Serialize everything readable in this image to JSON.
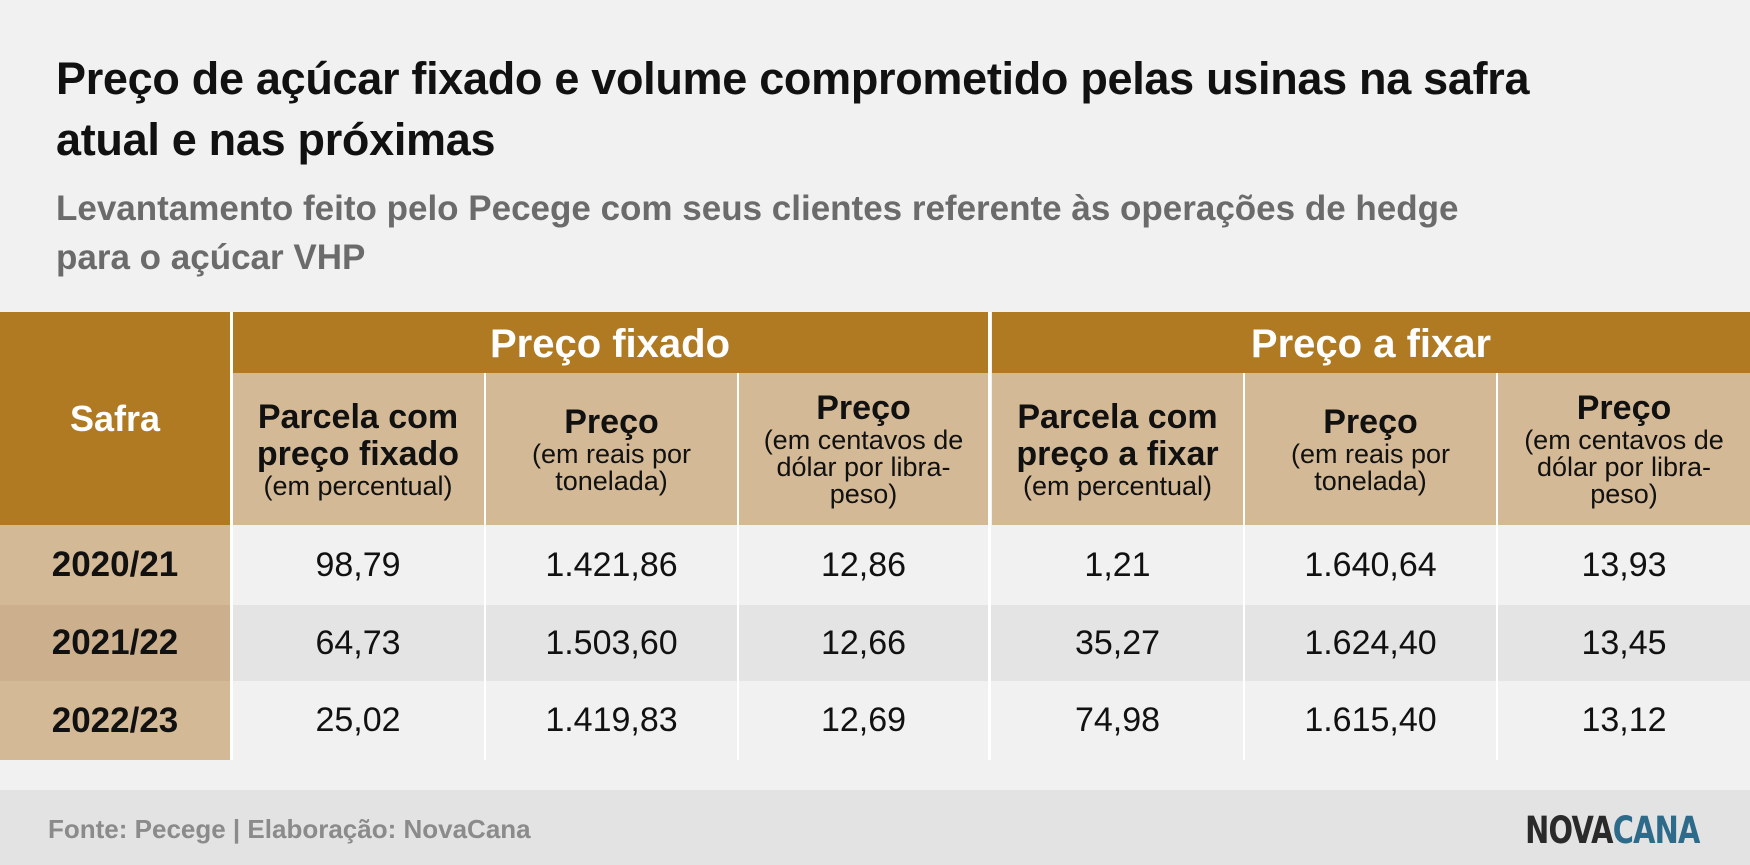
{
  "title": "Preço de açúcar fixado e volume comprometido pelas usinas na safra atual e nas próximas",
  "subtitle": "Levantamento feito pelo Pecege com seus clientes referente às operações de hedge para o açúcar VHP",
  "colors": {
    "header_dark": "#b07a22",
    "header_light": "#d4b996",
    "row_light": "#f1f1f1",
    "row_dark": "#e4e4e4",
    "year_light": "#d4b996",
    "year_dark": "#ccb08e",
    "logo_blue": "#2e6b8a"
  },
  "chart_data": {
    "type": "table",
    "title": "Preço de açúcar fixado e volume comprometido pelas usinas na safra atual e nas próximas",
    "subtitle": "Levantamento feito pelo Pecege com seus clientes referente às operações de hedge para o açúcar VHP",
    "row_header": "Safra",
    "groups": [
      {
        "label": "Preço fixado",
        "columns": [
          {
            "main": "Parcela com preço fixado",
            "sub": "(em percentual)"
          },
          {
            "main": "Preço",
            "sub": "(em reais por tonelada)"
          },
          {
            "main": "Preço",
            "sub": "(em centavos de dólar por libra-peso)"
          }
        ]
      },
      {
        "label": "Preço a fixar",
        "columns": [
          {
            "main": "Parcela com preço a fixar",
            "sub": "(em percentual)"
          },
          {
            "main": "Preço",
            "sub": "(em reais por tonelada)"
          },
          {
            "main": "Preço",
            "sub": "(em centavos de dólar por libra-peso)"
          }
        ]
      }
    ],
    "rows": [
      {
        "safra": "2020/21",
        "values": [
          "98,79",
          "1.421,86",
          "12,86",
          "1,21",
          "1.640,64",
          "13,93"
        ]
      },
      {
        "safra": "2021/22",
        "values": [
          "64,73",
          "1.503,60",
          "12,66",
          "35,27",
          "1.624,40",
          "13,45"
        ]
      },
      {
        "safra": "2022/23",
        "values": [
          "25,02",
          "1.419,83",
          "12,69",
          "74,98",
          "1.615,40",
          "13,12"
        ]
      }
    ]
  },
  "footer": {
    "source": "Fonte: Pecege | Elaboração: NovaCana",
    "logo_part1": "NOVA",
    "logo_part2": "CANA"
  }
}
